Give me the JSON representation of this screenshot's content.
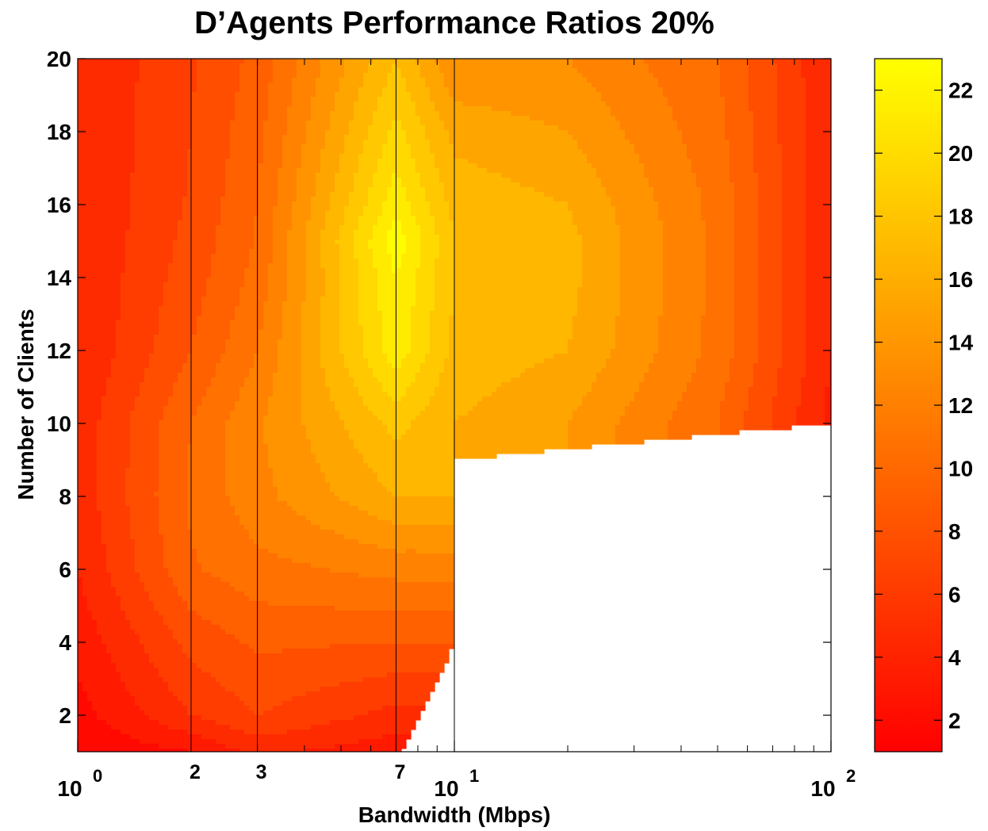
{
  "chart_data": {
    "type": "contour",
    "title": "D’Agents Performance Ratios 20%",
    "xlabel": "Bandwidth (Mbps)",
    "ylabel": "Number of Clients",
    "x_scale": "log",
    "xlim": [
      1,
      100
    ],
    "ylim": [
      1,
      20
    ],
    "x_major_ticks": [
      1,
      10,
      100
    ],
    "x_tick_labels": [
      {
        "base": "10",
        "exp": "0"
      },
      {
        "base": "10",
        "exp": "1"
      },
      {
        "base": "10",
        "exp": "2"
      }
    ],
    "x_marked_values": [
      2,
      3,
      7
    ],
    "x_marked_labels": [
      "2",
      "3",
      "7"
    ],
    "y_ticks": [
      2,
      4,
      6,
      8,
      10,
      12,
      14,
      16,
      18,
      20
    ],
    "y_tick_labels": [
      "2",
      "4",
      "6",
      "8",
      "10",
      "12",
      "14",
      "16",
      "18",
      "20"
    ],
    "grid": false,
    "colorbar": {
      "colormap": "autumn",
      "range": [
        1,
        23
      ],
      "ticks": [
        2,
        4,
        6,
        8,
        10,
        12,
        14,
        16,
        18,
        20,
        22
      ],
      "tick_labels": [
        "2",
        "4",
        "6",
        "8",
        "10",
        "12",
        "14",
        "16",
        "18",
        "20",
        "22"
      ]
    },
    "colors": {
      "low": "#ff0000",
      "high": "#ffff00",
      "line": "#000000"
    },
    "sample_grid": {
      "x": [
        1,
        2,
        3,
        7,
        10,
        20,
        50,
        100
      ],
      "y": [
        1,
        2,
        4,
        6,
        8,
        10,
        12,
        14,
        15,
        16,
        18,
        20
      ],
      "values": [
        [
          1.2,
          2.5,
          4.5,
          3.0,
          null,
          null,
          null,
          null
        ],
        [
          1.9,
          5.5,
          7.0,
          5.0,
          null,
          null,
          null,
          null
        ],
        [
          3.0,
          7.5,
          8.8,
          8.5,
          null,
          null,
          null,
          null
        ],
        [
          4.0,
          9.8,
          11.0,
          12.0,
          null,
          null,
          null,
          null
        ],
        [
          4.5,
          10.3,
          12.5,
          16.0,
          null,
          null,
          null,
          null
        ],
        [
          4.5,
          10.0,
          12.8,
          18.0,
          16.0,
          14.5,
          10.0,
          3.5
        ],
        [
          4.0,
          8.5,
          11.5,
          21.5,
          17.0,
          16.0,
          11.0,
          4.0
        ],
        [
          4.0,
          7.8,
          10.5,
          22.0,
          17.5,
          16.5,
          11.0,
          4.0
        ],
        [
          4.0,
          7.5,
          10.2,
          23.0,
          17.5,
          16.5,
          11.0,
          4.0
        ],
        [
          4.0,
          7.2,
          10.0,
          21.5,
          17.0,
          16.0,
          11.0,
          4.0
        ],
        [
          4.0,
          7.0,
          9.5,
          19.5,
          15.5,
          14.5,
          10.5,
          4.0
        ],
        [
          4.0,
          6.8,
          9.0,
          17.5,
          13.0,
          13.0,
          10.0,
          4.0
        ]
      ]
    }
  }
}
